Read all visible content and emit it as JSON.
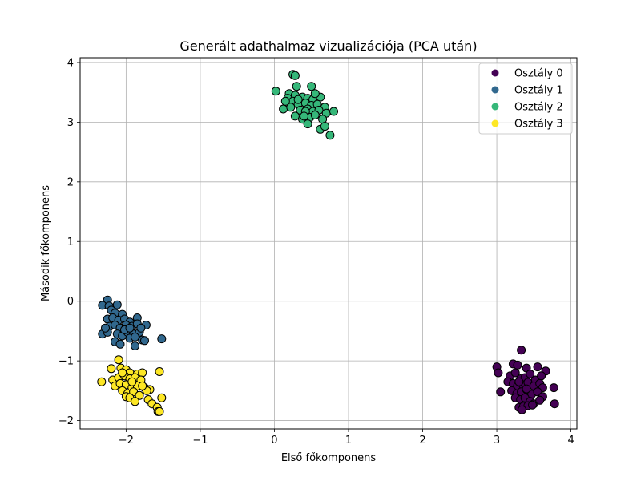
{
  "chart_data": {
    "type": "scatter",
    "title": "Generált adathalmaz vizualizációja (PCA után)",
    "xlabel": "Első főkomponens",
    "ylabel": "Második főkomponens",
    "xlim": [
      -2.62,
      4.08
    ],
    "ylim": [
      -2.14,
      4.08
    ],
    "xticks": [
      -2,
      -1,
      0,
      1,
      2,
      3,
      4
    ],
    "yticks": [
      -2,
      -1,
      0,
      1,
      2,
      3,
      4
    ],
    "grid": true,
    "legend_position": "top-right",
    "series": [
      {
        "name": "Osztály 0",
        "color": "#440154",
        "points": [
          [
            3.33,
            -0.82
          ],
          [
            3.0,
            -1.1
          ],
          [
            3.22,
            -1.05
          ],
          [
            3.28,
            -1.07
          ],
          [
            3.4,
            -1.12
          ],
          [
            3.55,
            -1.1
          ],
          [
            3.66,
            -1.17
          ],
          [
            3.18,
            -1.25
          ],
          [
            3.25,
            -1.2
          ],
          [
            3.32,
            -1.3
          ],
          [
            3.38,
            -1.28
          ],
          [
            3.45,
            -1.22
          ],
          [
            3.52,
            -1.32
          ],
          [
            3.6,
            -1.25
          ],
          [
            3.02,
            -1.2
          ],
          [
            3.15,
            -1.35
          ],
          [
            3.22,
            -1.38
          ],
          [
            3.28,
            -1.42
          ],
          [
            3.35,
            -1.4
          ],
          [
            3.42,
            -1.36
          ],
          [
            3.5,
            -1.42
          ],
          [
            3.58,
            -1.38
          ],
          [
            3.62,
            -1.45
          ],
          [
            3.77,
            -1.45
          ],
          [
            3.05,
            -1.52
          ],
          [
            3.2,
            -1.5
          ],
          [
            3.27,
            -1.55
          ],
          [
            3.33,
            -1.52
          ],
          [
            3.4,
            -1.48
          ],
          [
            3.47,
            -1.56
          ],
          [
            3.55,
            -1.52
          ],
          [
            3.62,
            -1.6
          ],
          [
            3.25,
            -1.62
          ],
          [
            3.32,
            -1.65
          ],
          [
            3.38,
            -1.62
          ],
          [
            3.45,
            -1.68
          ],
          [
            3.5,
            -1.72
          ],
          [
            3.58,
            -1.66
          ],
          [
            3.78,
            -1.72
          ],
          [
            3.3,
            -1.78
          ],
          [
            3.36,
            -1.76
          ],
          [
            3.42,
            -1.75
          ],
          [
            3.48,
            -1.74
          ],
          [
            3.34,
            -1.82
          ],
          [
            3.4,
            -1.47
          ],
          [
            3.3,
            -1.35
          ]
        ]
      },
      {
        "name": "Osztály 1",
        "color": "#31688e",
        "points": [
          [
            -2.25,
            0.02
          ],
          [
            -2.32,
            -0.07
          ],
          [
            -2.23,
            -0.08
          ],
          [
            -2.12,
            -0.06
          ],
          [
            -2.2,
            -0.15
          ],
          [
            -2.15,
            -0.2
          ],
          [
            -2.05,
            -0.22
          ],
          [
            -2.25,
            -0.3
          ],
          [
            -2.18,
            -0.28
          ],
          [
            -2.1,
            -0.32
          ],
          [
            -2.02,
            -0.3
          ],
          [
            -1.95,
            -0.35
          ],
          [
            -1.85,
            -0.28
          ],
          [
            -2.22,
            -0.42
          ],
          [
            -2.15,
            -0.4
          ],
          [
            -2.08,
            -0.45
          ],
          [
            -2.0,
            -0.4
          ],
          [
            -1.92,
            -0.42
          ],
          [
            -1.85,
            -0.38
          ],
          [
            -1.73,
            -0.4
          ],
          [
            -2.32,
            -0.55
          ],
          [
            -2.25,
            -0.52
          ],
          [
            -2.12,
            -0.55
          ],
          [
            -2.05,
            -0.58
          ],
          [
            -1.98,
            -0.52
          ],
          [
            -1.9,
            -0.55
          ],
          [
            -1.82,
            -0.52
          ],
          [
            -1.78,
            -0.65
          ],
          [
            -2.15,
            -0.68
          ],
          [
            -2.08,
            -0.72
          ],
          [
            -1.95,
            -0.62
          ],
          [
            -1.88,
            -0.75
          ],
          [
            -1.75,
            -0.66
          ],
          [
            -1.52,
            -0.63
          ],
          [
            -2.28,
            -0.45
          ],
          [
            -2.02,
            -0.48
          ],
          [
            -1.88,
            -0.6
          ],
          [
            -1.95,
            -0.45
          ],
          [
            -1.8,
            -0.45
          ]
        ]
      },
      {
        "name": "Osztály 2",
        "color": "#35b779",
        "points": [
          [
            0.25,
            3.8
          ],
          [
            0.28,
            3.78
          ],
          [
            0.02,
            3.52
          ],
          [
            0.3,
            3.6
          ],
          [
            0.5,
            3.6
          ],
          [
            0.2,
            3.48
          ],
          [
            0.28,
            3.45
          ],
          [
            0.38,
            3.42
          ],
          [
            0.45,
            3.4
          ],
          [
            0.52,
            3.38
          ],
          [
            0.62,
            3.42
          ],
          [
            0.18,
            3.4
          ],
          [
            0.25,
            3.35
          ],
          [
            0.32,
            3.3
          ],
          [
            0.42,
            3.32
          ],
          [
            0.5,
            3.28
          ],
          [
            0.58,
            3.3
          ],
          [
            0.68,
            3.25
          ],
          [
            0.12,
            3.22
          ],
          [
            0.22,
            3.25
          ],
          [
            0.35,
            3.2
          ],
          [
            0.45,
            3.22
          ],
          [
            0.52,
            3.18
          ],
          [
            0.6,
            3.2
          ],
          [
            0.7,
            3.15
          ],
          [
            0.8,
            3.18
          ],
          [
            0.28,
            3.1
          ],
          [
            0.38,
            3.05
          ],
          [
            0.48,
            3.08
          ],
          [
            0.55,
            3.12
          ],
          [
            0.65,
            3.05
          ],
          [
            0.45,
            2.97
          ],
          [
            0.62,
            2.88
          ],
          [
            0.68,
            2.93
          ],
          [
            0.75,
            2.78
          ],
          [
            0.32,
            3.38
          ],
          [
            0.42,
            3.18
          ],
          [
            0.55,
            3.48
          ],
          [
            0.4,
            3.1
          ],
          [
            0.15,
            3.35
          ]
        ]
      },
      {
        "name": "Osztály 3",
        "color": "#fde725",
        "points": [
          [
            -2.1,
            -0.98
          ],
          [
            -2.07,
            -1.12
          ],
          [
            -2.0,
            -1.15
          ],
          [
            -2.2,
            -1.13
          ],
          [
            -1.95,
            -1.2
          ],
          [
            -1.85,
            -1.22
          ],
          [
            -1.78,
            -1.2
          ],
          [
            -1.55,
            -1.18
          ],
          [
            -2.33,
            -1.35
          ],
          [
            -2.18,
            -1.32
          ],
          [
            -2.1,
            -1.28
          ],
          [
            -2.02,
            -1.25
          ],
          [
            -1.95,
            -1.3
          ],
          [
            -1.88,
            -1.28
          ],
          [
            -1.8,
            -1.32
          ],
          [
            -2.15,
            -1.42
          ],
          [
            -2.08,
            -1.38
          ],
          [
            -2.0,
            -1.4
          ],
          [
            -1.92,
            -1.45
          ],
          [
            -1.85,
            -1.42
          ],
          [
            -1.75,
            -1.45
          ],
          [
            -1.68,
            -1.48
          ],
          [
            -2.05,
            -1.5
          ],
          [
            -1.98,
            -1.55
          ],
          [
            -1.9,
            -1.52
          ],
          [
            -1.82,
            -1.58
          ],
          [
            -1.72,
            -1.5
          ],
          [
            -2.0,
            -1.6
          ],
          [
            -1.95,
            -1.62
          ],
          [
            -1.88,
            -1.68
          ],
          [
            -1.7,
            -1.65
          ],
          [
            -1.52,
            -1.62
          ],
          [
            -1.65,
            -1.72
          ],
          [
            -1.58,
            -1.78
          ],
          [
            -1.57,
            -1.85
          ],
          [
            -1.55,
            -1.85
          ],
          [
            -1.78,
            -1.42
          ],
          [
            -2.05,
            -1.2
          ],
          [
            -1.92,
            -1.35
          ]
        ]
      }
    ]
  }
}
